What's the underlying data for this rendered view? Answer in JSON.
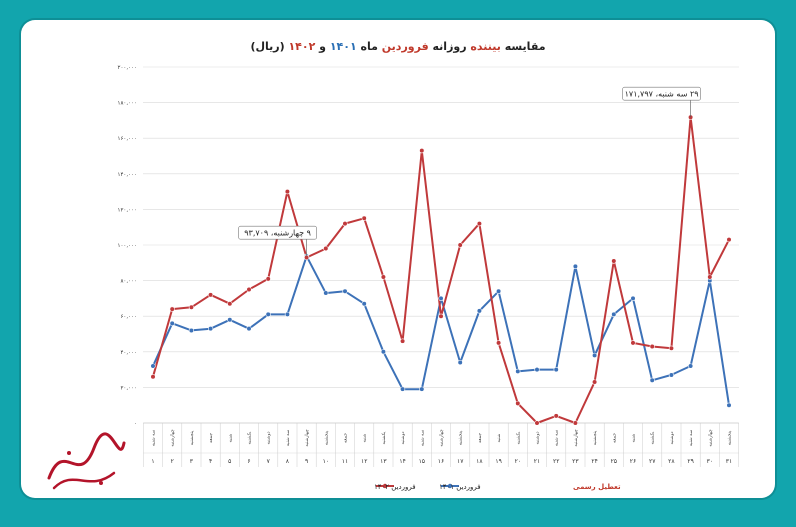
{
  "chart_data": {
    "type": "line",
    "title_parts": [
      {
        "text": "مقایسه ",
        "color": "#222222"
      },
      {
        "text": "بیننده",
        "color": "#c0392b"
      },
      {
        "text": " روزانه ",
        "color": "#222222"
      },
      {
        "text": "فروردین",
        "color": "#c0392b"
      },
      {
        "text": " ماه ",
        "color": "#222222"
      },
      {
        "text": "۱۴۰۱",
        "color": "#2a6fb5"
      },
      {
        "text": " و ",
        "color": "#222222"
      },
      {
        "text": "۱۴۰۲",
        "color": "#c0392b"
      },
      {
        "text": " (ریال)",
        "color": "#222222"
      }
    ],
    "ylim": [
      0,
      200000
    ],
    "y_ticks": [
      0,
      20000,
      40000,
      60000,
      80000,
      100000,
      120000,
      140000,
      160000,
      180000,
      200000
    ],
    "y_tick_labels": [
      "۰",
      "۲۰,۰۰۰",
      "۴۰,۰۰۰",
      "۶۰,۰۰۰",
      "۸۰,۰۰۰",
      "۱۰۰,۰۰۰",
      "۱۲۰,۰۰۰",
      "۱۴۰,۰۰۰",
      "۱۶۰,۰۰۰",
      "۱۸۰,۰۰۰",
      "۲۰۰,۰۰۰"
    ],
    "x": [
      1,
      2,
      3,
      4,
      5,
      6,
      7,
      8,
      9,
      10,
      11,
      12,
      13,
      14,
      15,
      16,
      17,
      18,
      19,
      20,
      21,
      22,
      23,
      24,
      25,
      26,
      27,
      28,
      29,
      30,
      31
    ],
    "x_labels": [
      "۱",
      "۲",
      "۳",
      "۴",
      "۵",
      "۶",
      "۷",
      "۸",
      "۹",
      "۱۰",
      "۱۱",
      "۱۲",
      "۱۳",
      "۱۴",
      "۱۵",
      "۱۶",
      "۱۷",
      "۱۸",
      "۱۹",
      "۲۰",
      "۲۱",
      "۲۲",
      "۲۳",
      "۲۴",
      "۲۵",
      "۲۶",
      "۲۷",
      "۲۸",
      "۲۹",
      "۳۰",
      "۳۱"
    ],
    "weekdays": [
      "سه شنبه",
      "چهارشنبه",
      "پنجشنبه",
      "جمعه",
      "شنبه",
      "یکشنبه",
      "دوشنبه",
      "سه شنبه",
      "چهارشنبه",
      "پنجشنبه",
      "جمعه",
      "شنبه",
      "یکشنبه",
      "دوشنبه",
      "سه شنبه",
      "چهارشنبه",
      "پنجشنبه",
      "جمعه",
      "شنبه",
      "یکشنبه",
      "دوشنبه",
      "سه شنبه",
      "چهارشنبه",
      "پنجشنبه",
      "جمعه",
      "شنبه",
      "یکشنبه",
      "دوشنبه",
      "سه شنبه",
      "چهارشنبه",
      "پنجشنبه"
    ],
    "holidays": [
      1,
      2,
      3,
      4,
      12,
      13,
      22,
      23
    ],
    "series": [
      {
        "name": "فروردین ۱۴۰۱",
        "color": "#3d72b8",
        "values": [
          32000,
          56000,
          52000,
          53000,
          58000,
          53000,
          61000,
          61000,
          93709,
          73000,
          74000,
          67000,
          40000,
          19000,
          19000,
          70000,
          34000,
          63000,
          74000,
          29000,
          30000,
          30000,
          88000,
          38000,
          61000,
          70000,
          24000,
          27000,
          32000,
          80000,
          10000
        ]
      },
      {
        "name": "فروردین ۱۴۰۲",
        "color": "#c0393b",
        "values": [
          26000,
          64000,
          65000,
          72000,
          67000,
          75000,
          81000,
          130000,
          93000,
          98000,
          112000,
          115000,
          82000,
          46000,
          153000,
          60000,
          100000,
          112000,
          45000,
          11000,
          0,
          4000,
          0,
          23000,
          91000,
          45000,
          43000,
          42000,
          171797,
          82000,
          103000
        ]
      }
    ],
    "annotations": [
      {
        "x": 9,
        "series": 0,
        "text": "۹ چهارشنبه، ۹۳,۷۰۹"
      },
      {
        "x": 29,
        "series": 1,
        "text": "۲۹ سه شنبه، ۱۷۱,۷۹۷"
      }
    ],
    "legend_position": "bottom",
    "holiday_legend": "تعطیل رسمی",
    "holiday_color": "#c0392b",
    "grid": true
  }
}
